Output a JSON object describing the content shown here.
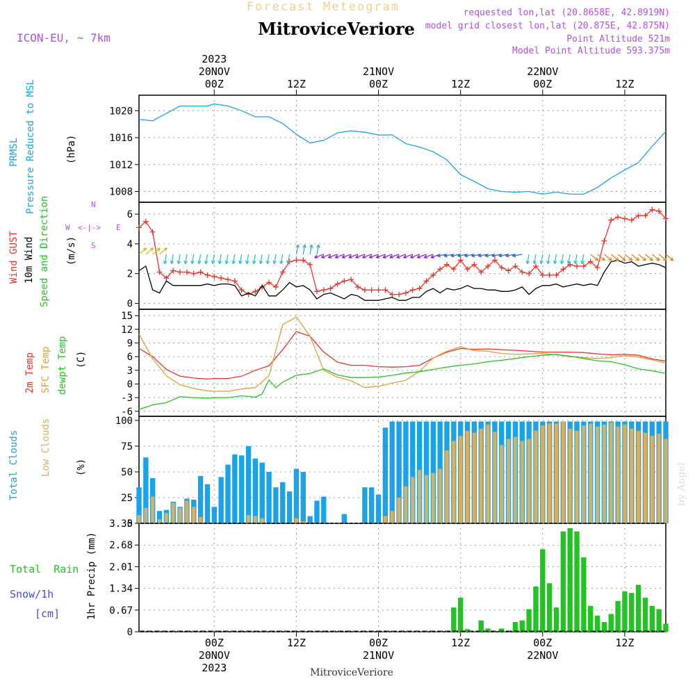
{
  "header": {
    "product": "Forecast Meteogram",
    "location": "MitroviceVeriore",
    "model": "ICON-EU, ~ 7km",
    "requested": "requested lon,lat (20.8658E, 42.8919N)",
    "closest": "model grid closest lon,lat (20.875E, 42.875N)",
    "point_alt": "Point Altitude 521m",
    "model_alt": "Model Point Altitude 593.375m",
    "footer_location": "MitroviceVeriore",
    "credit": "by Angel"
  },
  "colors": {
    "pressure": "#1aa3e8",
    "gust": "#e8342c",
    "wind": "#000000",
    "temp2m": "#e8342c",
    "sfc": "#e0a030",
    "dewpt": "#22c422",
    "total_clouds": "#1aa3e8",
    "low_clouds": "#d8b060",
    "rain": "#22c422",
    "snow": "#4a4ae8",
    "accent": "#b050e0"
  },
  "time_axis": {
    "top_labels": [
      {
        "h": 0,
        "lines": [
          "2023",
          "20NOV",
          "00Z"
        ]
      },
      {
        "h": 12,
        "lines": [
          "12Z"
        ]
      },
      {
        "h": 24,
        "lines": [
          "21NOV",
          "00Z"
        ]
      },
      {
        "h": 36,
        "lines": [
          "12Z"
        ]
      },
      {
        "h": 48,
        "lines": [
          "22NOV",
          "00Z"
        ]
      },
      {
        "h": 60,
        "lines": [
          "12Z"
        ]
      }
    ],
    "bottom_labels": [
      {
        "h": 0,
        "lines": [
          "00Z",
          "20NOV",
          "2023"
        ]
      },
      {
        "h": 12,
        "lines": [
          "12Z"
        ]
      },
      {
        "h": 24,
        "lines": [
          "00Z",
          "21NOV"
        ]
      },
      {
        "h": 36,
        "lines": [
          "12Z"
        ]
      },
      {
        "h": 48,
        "lines": [
          "00Z",
          "22NOV"
        ]
      },
      {
        "h": 60,
        "lines": [
          "12Z"
        ]
      }
    ],
    "range_hours": [
      -11,
      66
    ]
  },
  "chart_data": [
    {
      "type": "line",
      "panel": "pressure",
      "title_lines": [
        "PRMSL",
        "Pressure Reduced to MSL"
      ],
      "ylabel": "(hPa)",
      "ylim": [
        1006.4,
        1022.3
      ],
      "yticks": [
        1008,
        1012,
        1016,
        1020
      ],
      "series": [
        {
          "name": "PRMSL",
          "x": [
            -11,
            -9,
            -7,
            -5,
            -3,
            -1,
            0,
            2,
            4,
            6,
            8,
            10,
            12,
            14,
            16,
            18,
            20,
            22,
            24,
            26,
            28,
            30,
            32,
            34,
            36,
            38,
            40,
            42,
            44,
            46,
            48,
            50,
            52,
            54,
            56,
            58,
            60,
            62,
            64,
            66
          ],
          "values": [
            1018.7,
            1018.5,
            1019.6,
            1020.7,
            1020.7,
            1020.7,
            1021.0,
            1020.7,
            1020.0,
            1019.1,
            1019.1,
            1018.1,
            1016.5,
            1015.2,
            1015.6,
            1016.7,
            1017.0,
            1016.8,
            1016.4,
            1016.4,
            1015.1,
            1014.6,
            1013.9,
            1012.7,
            1010.5,
            1009.5,
            1008.4,
            1008.0,
            1007.9,
            1008.0,
            1007.6,
            1007.9,
            1007.6,
            1007.6,
            1008.6,
            1010.0,
            1011.2,
            1012.3,
            1014.7,
            1016.9
          ]
        }
      ]
    },
    {
      "type": "line",
      "panel": "wind",
      "title_lines": [
        "Wind GUST",
        "10m Wind",
        "Speed and Direction"
      ],
      "ylabel": "(m/s)",
      "compass": {
        "n": "N",
        "s": "S",
        "w": "W",
        "e": "E"
      },
      "ylim": [
        -0.4,
        6.8
      ],
      "yticks": [
        0,
        2,
        4,
        6
      ],
      "series": [
        {
          "name": "Wind GUST",
          "x": [
            -11,
            -10,
            -9,
            -8,
            -7,
            -6,
            -5,
            -4,
            -3,
            -2,
            -1,
            0,
            1,
            2,
            3,
            4,
            5,
            6,
            7,
            8,
            9,
            10,
            11,
            12,
            13,
            14,
            15,
            16,
            17,
            18,
            19,
            20,
            21,
            22,
            23,
            24,
            25,
            26,
            27,
            28,
            29,
            30,
            31,
            32,
            33,
            34,
            35,
            36,
            37,
            38,
            39,
            40,
            41,
            42,
            43,
            44,
            45,
            46,
            47,
            48,
            49,
            50,
            51,
            52,
            53,
            54,
            55,
            56,
            57,
            58,
            59,
            60,
            61,
            62,
            63,
            64,
            65,
            66
          ],
          "values": [
            5.1,
            5.5,
            4.8,
            2.1,
            1.7,
            2.2,
            2.1,
            2.1,
            2.0,
            2.1,
            1.9,
            1.8,
            1.7,
            1.6,
            1.5,
            0.9,
            0.6,
            0.8,
            1.1,
            1.4,
            1.1,
            2.1,
            2.8,
            2.9,
            2.9,
            2.6,
            0.8,
            0.9,
            1.0,
            1.3,
            1.5,
            1.6,
            1.1,
            0.9,
            0.9,
            0.9,
            0.9,
            0.6,
            0.6,
            0.7,
            0.9,
            1.0,
            1.5,
            1.9,
            2.3,
            2.6,
            2.3,
            2.9,
            2.3,
            2.6,
            2.1,
            2.5,
            2.9,
            2.4,
            2.2,
            2.5,
            2.1,
            2.0,
            2.5,
            1.9,
            1.9,
            1.9,
            2.3,
            2.6,
            2.5,
            2.5,
            2.8,
            2.4,
            4.2,
            5.6,
            5.8,
            5.7,
            5.6,
            5.9,
            5.9,
            6.3,
            6.2,
            5.7
          ]
        },
        {
          "name": "10m Wind",
          "x": [
            -11,
            -10,
            -9,
            -8,
            -7,
            -6,
            -5,
            -4,
            -3,
            -2,
            -1,
            0,
            1,
            2,
            3,
            4,
            5,
            6,
            7,
            8,
            9,
            10,
            11,
            12,
            13,
            14,
            15,
            16,
            17,
            18,
            19,
            20,
            21,
            22,
            23,
            24,
            25,
            26,
            27,
            28,
            29,
            30,
            31,
            32,
            33,
            34,
            35,
            36,
            37,
            38,
            39,
            40,
            41,
            42,
            43,
            44,
            45,
            46,
            47,
            48,
            49,
            50,
            51,
            52,
            53,
            54,
            55,
            56,
            57,
            58,
            59,
            60,
            61,
            62,
            63,
            64,
            65,
            66
          ],
          "values": [
            2.2,
            2.5,
            0.9,
            0.7,
            1.5,
            1.2,
            1.2,
            1.2,
            1.2,
            1.2,
            1.3,
            1.2,
            1.3,
            1.3,
            1.2,
            0.5,
            0.7,
            0.5,
            1.2,
            0.5,
            0.5,
            0.9,
            1.4,
            1.1,
            1.2,
            0.9,
            0.3,
            0.6,
            0.7,
            0.5,
            0.3,
            0.6,
            0.5,
            0.2,
            0.2,
            0.2,
            0.3,
            0.4,
            0.2,
            0.2,
            0.4,
            0.4,
            0.8,
            1.0,
            0.7,
            1.0,
            0.9,
            1.0,
            1.2,
            1.0,
            1.0,
            0.9,
            0.9,
            0.8,
            0.8,
            0.9,
            1.1,
            0.6,
            1.0,
            1.2,
            1.2,
            1.3,
            1.1,
            1.2,
            1.3,
            1.2,
            1.3,
            1.2,
            2.1,
            2.8,
            2.9,
            2.7,
            2.8,
            2.5,
            2.6,
            2.7,
            2.6,
            2.4
          ]
        }
      ]
    },
    {
      "type": "line",
      "panel": "temperature",
      "title_lines": [
        "2m Temp",
        "SFC Temp",
        "dewpt Temp"
      ],
      "ylabel": "(C)",
      "ylim": [
        -7.1,
        16.4
      ],
      "yticks": [
        -6,
        -3,
        0,
        3,
        6,
        9,
        12,
        15
      ],
      "series": [
        {
          "name": "2m Temp",
          "x": [
            -11,
            -9,
            -7,
            -5,
            -3,
            -1,
            0,
            2,
            4,
            6,
            8,
            10,
            12,
            14,
            16,
            18,
            20,
            22,
            24,
            26,
            28,
            30,
            32,
            34,
            36,
            38,
            40,
            42,
            44,
            46,
            48,
            50,
            52,
            54,
            56,
            58,
            60,
            62,
            64,
            66
          ],
          "values": [
            7.8,
            6,
            3.2,
            1.7,
            1.3,
            1.1,
            1.2,
            1.2,
            1.7,
            3,
            4,
            7.5,
            11.5,
            10.5,
            7,
            4.8,
            4.1,
            4.1,
            3.8,
            3.7,
            3.8,
            4.1,
            5.7,
            7,
            7.8,
            7.6,
            7.7,
            7.5,
            7.4,
            7.2,
            7.0,
            7.0,
            7.0,
            6.9,
            6.6,
            6.4,
            6.5,
            6.3,
            5.5,
            5.0
          ]
        },
        {
          "name": "SFC Temp",
          "x": [
            -11,
            -9,
            -7,
            -5,
            -3,
            -1,
            0,
            2,
            4,
            6,
            8,
            10,
            12,
            14,
            16,
            18,
            20,
            22,
            24,
            26,
            28,
            30,
            32,
            34,
            36,
            38,
            40,
            42,
            44,
            46,
            48,
            50,
            52,
            54,
            56,
            58,
            60,
            62,
            64,
            66
          ],
          "values": [
            11,
            5.5,
            1.8,
            -0.2,
            -1.0,
            -1.5,
            -1.6,
            -1.6,
            -1.1,
            -0.8,
            1.8,
            13,
            14.7,
            10.5,
            3,
            1.5,
            0.7,
            -0.8,
            -0.5,
            0.2,
            0.8,
            2.8,
            5.7,
            7.2,
            8.2,
            7.3,
            7.2,
            6.7,
            6.5,
            6.6,
            6.7,
            6.4,
            6.0,
            5.8,
            5.6,
            5.8,
            6.2,
            5.9,
            5.3,
            4.6
          ]
        },
        {
          "name": "dewpt Temp",
          "x": [
            -11,
            -9,
            -7,
            -5,
            -3,
            -1,
            0,
            2,
            4,
            6,
            7,
            8,
            9,
            10,
            12,
            14,
            16,
            18,
            20,
            22,
            24,
            26,
            28,
            30,
            32,
            34,
            36,
            38,
            40,
            42,
            44,
            46,
            48,
            50,
            52,
            54,
            56,
            58,
            60,
            62,
            64,
            66
          ],
          "values": [
            -5.6,
            -4.6,
            -4.1,
            -2.8,
            -3.0,
            -3.1,
            -3.0,
            -3.0,
            -2.6,
            -2.9,
            -2.2,
            0.9,
            -0.8,
            0.4,
            1.9,
            2.3,
            3.3,
            2,
            1.4,
            1.4,
            1.5,
            1.9,
            2.4,
            2.7,
            3.2,
            3.7,
            4.1,
            4.4,
            4.9,
            5.2,
            5.6,
            6.0,
            6.3,
            6.5,
            6.1,
            5.6,
            5.1,
            4.9,
            4.2,
            3.3,
            2.9,
            2.3
          ]
        }
      ]
    },
    {
      "type": "bar",
      "panel": "clouds",
      "title_lines": [
        "Total Clouds",
        "Low Clouds"
      ],
      "ylabel": "(%)",
      "ylim": [
        0,
        104
      ],
      "yticks": [
        0,
        25,
        50,
        75,
        100
      ],
      "x_start": -11,
      "series": [
        {
          "name": "Total Clouds",
          "values": [
            35,
            64,
            44,
            12,
            13,
            21,
            16,
            24,
            23,
            46,
            38,
            16,
            45,
            57,
            67,
            66,
            75,
            63,
            59,
            50,
            35,
            40,
            31,
            53,
            50,
            7,
            22,
            26,
            0,
            0,
            9,
            0,
            0,
            35,
            35,
            28,
            93,
            99,
            99,
            99,
            99,
            99,
            99,
            99,
            99,
            99,
            99,
            99,
            99,
            99,
            99,
            99,
            99,
            99,
            99,
            99,
            99,
            99,
            99,
            99,
            99,
            99,
            99,
            99,
            99,
            99,
            99,
            99,
            99,
            99,
            99,
            99,
            99,
            99,
            99,
            99,
            99,
            99
          ]
        },
        {
          "name": "Low Clouds",
          "values": [
            8,
            15,
            26,
            4,
            10,
            20,
            15,
            22,
            16,
            6,
            0,
            0,
            0,
            0,
            0,
            0,
            8,
            7,
            5,
            0,
            0,
            0,
            0,
            5,
            2,
            0,
            0,
            0,
            0,
            0,
            0,
            0,
            0,
            0,
            0,
            0,
            7,
            12,
            25,
            36,
            45,
            52,
            47,
            49,
            53,
            71,
            80,
            85,
            90,
            88,
            92,
            96,
            89,
            76,
            82,
            84,
            80,
            82,
            90,
            95,
            97,
            97,
            99,
            92,
            90,
            95,
            97,
            94,
            96,
            98,
            94,
            96,
            92,
            90,
            88,
            85,
            87,
            82
          ]
        }
      ]
    },
    {
      "type": "bar",
      "panel": "precip",
      "title_lines": [
        "Total  Rain",
        "Snow/1h",
        "[cm]"
      ],
      "ylabel": "1hr Precip (mm)",
      "ylim": [
        0,
        3.35
      ],
      "yticks": [
        0,
        0.67,
        1.34,
        2.01,
        2.68,
        3.35
      ],
      "ytick_labels": [
        "0",
        "0.67",
        "1.34",
        "2.01",
        "2.68",
        "3.35"
      ],
      "x_start": -11,
      "series": [
        {
          "name": "Total Rain",
          "values": [
            0,
            0,
            0,
            0,
            0,
            0,
            0,
            0,
            0,
            0,
            0,
            0,
            0,
            0,
            0,
            0,
            0,
            0,
            0,
            0,
            0,
            0,
            0,
            0,
            0,
            0,
            0,
            0,
            0,
            0,
            0,
            0,
            0,
            0,
            0,
            0,
            0,
            0,
            0,
            0,
            0,
            0,
            0,
            0,
            0,
            0,
            0.75,
            1.05,
            0.08,
            0,
            0.35,
            0.1,
            0,
            0.1,
            0,
            0.3,
            0.35,
            0.7,
            1.4,
            2.55,
            1.5,
            0.75,
            3.1,
            3.2,
            3.1,
            2.3,
            0.8,
            0.5,
            0.3,
            0.55,
            0.95,
            1.25,
            1.2,
            1.45,
            1.05,
            0.8,
            0.7,
            0.25
          ]
        }
      ]
    }
  ]
}
